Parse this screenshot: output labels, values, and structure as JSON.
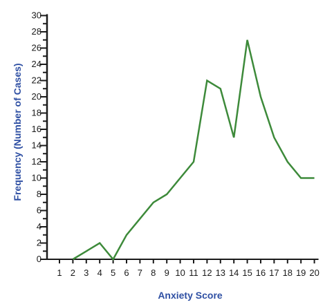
{
  "chart_data": {
    "type": "line",
    "xlabel": "Anxiety Score",
    "ylabel": "Frequency (Number of Cases)",
    "x": [
      2,
      3,
      4,
      5,
      6,
      7,
      8,
      9,
      10,
      11,
      12,
      13,
      14,
      15,
      16,
      17,
      18,
      19,
      20
    ],
    "y": [
      0,
      1,
      2,
      0,
      3,
      5,
      7,
      8,
      10,
      12,
      22,
      21,
      15,
      27,
      20,
      15,
      12,
      10,
      10
    ],
    "x_ticks": [
      1,
      2,
      3,
      4,
      5,
      6,
      7,
      8,
      9,
      10,
      11,
      12,
      13,
      14,
      15,
      16,
      17,
      18,
      19,
      20
    ],
    "y_ticks": [
      0,
      2,
      4,
      6,
      8,
      10,
      12,
      14,
      16,
      18,
      20,
      22,
      24,
      26,
      28,
      30
    ],
    "xlim": [
      1,
      20
    ],
    "ylim": [
      0,
      30
    ],
    "grid": false,
    "colors": {
      "line": "#3d8a3a",
      "axis": "#1a1a1a",
      "axis_title": "#2e4fa3"
    }
  }
}
